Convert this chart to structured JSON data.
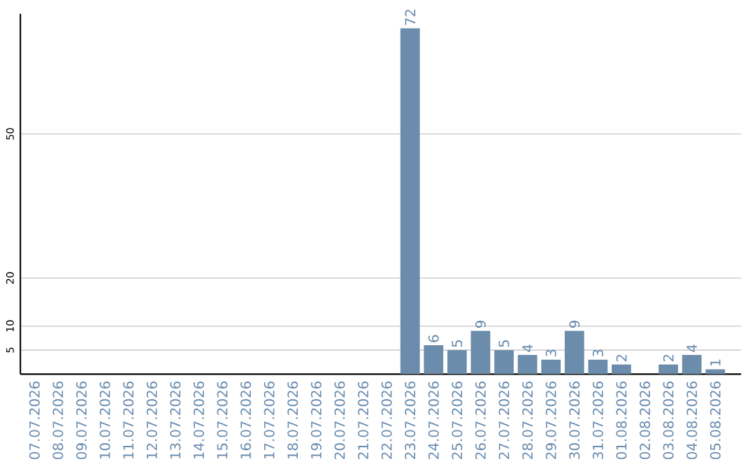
{
  "chart_data": {
    "type": "bar",
    "categories": [
      "07.07.2026",
      "08.07.2026",
      "09.07.2026",
      "10.07.2026",
      "11.07.2026",
      "12.07.2026",
      "13.07.2026",
      "14.07.2026",
      "15.07.2026",
      "16.07.2026",
      "17.07.2026",
      "18.07.2026",
      "19.07.2026",
      "20.07.2026",
      "21.07.2026",
      "22.07.2026",
      "23.07.2026",
      "24.07.2026",
      "25.07.2026",
      "26.07.2026",
      "27.07.2026",
      "28.07.2026",
      "29.07.2026",
      "30.07.2026",
      "31.07.2026",
      "01.08.2026",
      "02.08.2026",
      "03.08.2026",
      "04.08.2026",
      "05.08.2026"
    ],
    "values": [
      0,
      0,
      0,
      0,
      0,
      0,
      0,
      0,
      0,
      0,
      0,
      0,
      0,
      0,
      0,
      0,
      72,
      6,
      5,
      9,
      5,
      4,
      3,
      9,
      3,
      2,
      0,
      2,
      4,
      1
    ],
    "value_labels": [
      null,
      null,
      null,
      null,
      null,
      null,
      null,
      null,
      null,
      null,
      null,
      null,
      null,
      null,
      null,
      null,
      "72",
      "6",
      "5",
      "9",
      "5",
      "4",
      "3",
      "9",
      "3",
      "2",
      null,
      "2",
      "4",
      "1"
    ],
    "color": "#6b8cab",
    "ylim": [
      0,
      75
    ],
    "yticks": [
      5,
      10,
      20,
      50
    ],
    "grid": "y"
  }
}
